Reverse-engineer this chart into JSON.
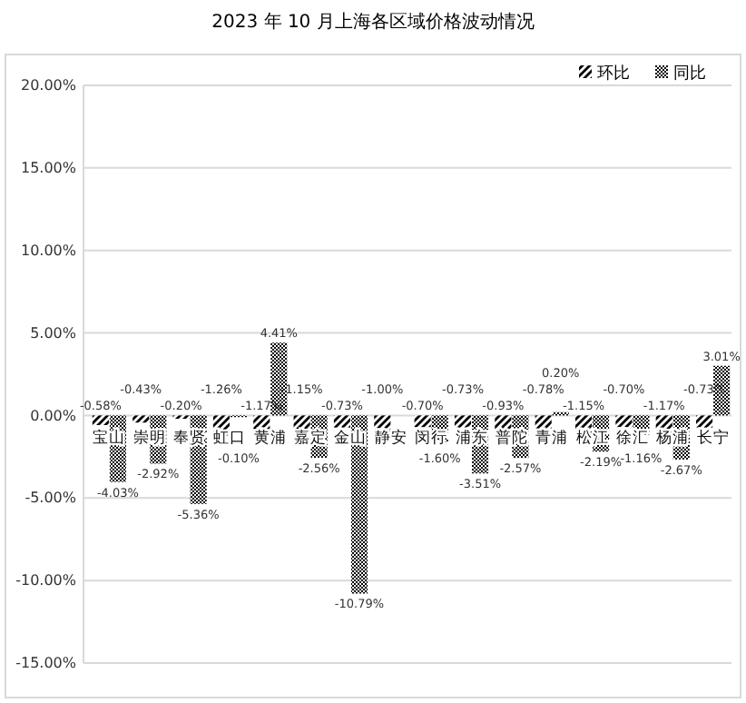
{
  "chart_data": {
    "type": "bar",
    "title": "2023 年 10 月上海各区域价格波动情况",
    "categories": [
      "宝山",
      "崇明",
      "奉贤",
      "虹口",
      "黄浦",
      "嘉定",
      "金山",
      "静安",
      "闵行",
      "浦东",
      "普陀",
      "青浦",
      "松江",
      "徐汇",
      "杨浦",
      "长宁"
    ],
    "series": [
      {
        "name": "环比",
        "color": "#000000",
        "values": [
          -0.58,
          -0.43,
          -0.2,
          -1.26,
          -1.17,
          -1.15,
          -0.73,
          -1.0,
          -0.7,
          -0.73,
          -0.93,
          -0.78,
          -1.15,
          -0.7,
          -1.17,
          -0.73
        ],
        "value_labels": [
          "-0.58%",
          "-0.43%",
          "-0.20%",
          "-1.26%",
          "-1.17%",
          "-1.15%",
          "-0.73%",
          "-1.00%",
          "-0.70%",
          "-0.73%",
          "-0.93%",
          "-0.78%",
          "-1.15%",
          "-0.70%",
          "-1.17%",
          "-0.73%"
        ]
      },
      {
        "name": "同比",
        "color": "#000000",
        "values": [
          -4.03,
          -2.92,
          -5.36,
          -0.1,
          4.41,
          -2.56,
          -10.79,
          null,
          -1.6,
          -3.51,
          -2.57,
          0.2,
          -2.19,
          -1.16,
          -2.67,
          3.01
        ],
        "value_labels": [
          "-4.03%",
          "-2.92%",
          "-5.36%",
          "-0.10%",
          "4.41%",
          "-2.56%",
          "-10.79%",
          null,
          "-1.60%",
          "-3.51%",
          "-2.57%",
          "0.20%",
          "-2.19%",
          "-1.16%",
          "-2.67%",
          "3.01%"
        ]
      }
    ],
    "ylim": [
      -15,
      20
    ],
    "yticks": [
      {
        "value": -15,
        "label": "-15.00%"
      },
      {
        "value": -10,
        "label": "-10.00%"
      },
      {
        "value": -5,
        "label": "-5.00%"
      },
      {
        "value": 0,
        "label": "0.00%"
      },
      {
        "value": 5,
        "label": "5.00%"
      },
      {
        "value": 10,
        "label": "10.00%"
      },
      {
        "value": 15,
        "label": "15.00%"
      },
      {
        "value": 20,
        "label": "20.00%"
      }
    ],
    "grid": "y",
    "legend": "top right"
  }
}
